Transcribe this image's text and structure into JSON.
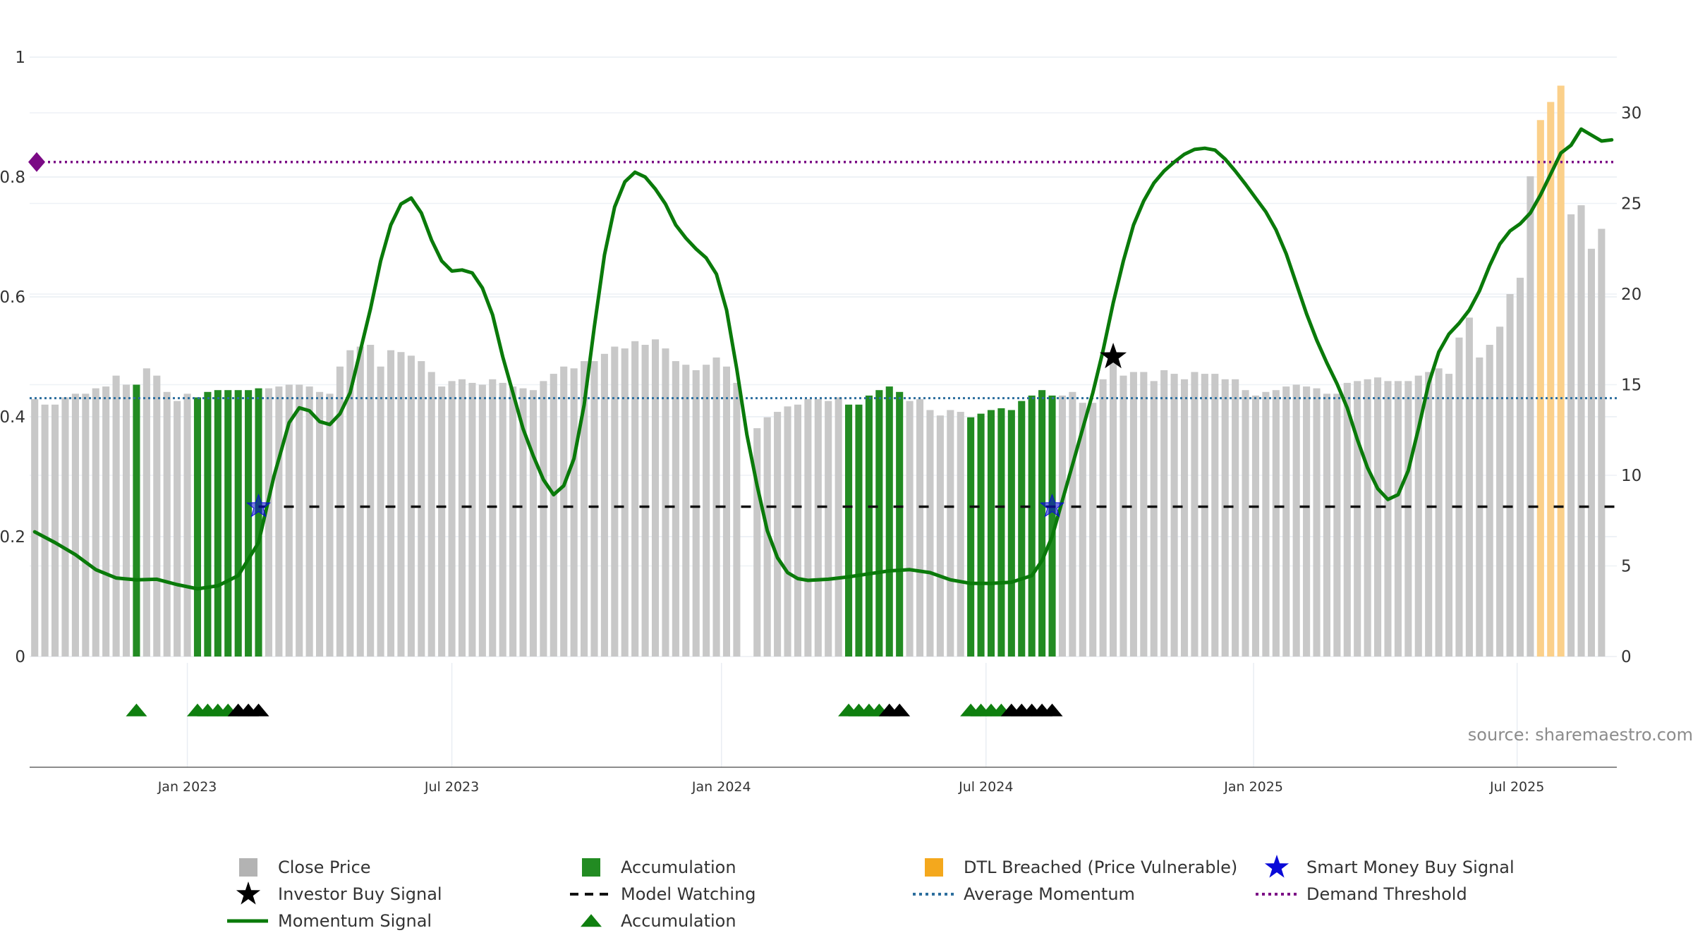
{
  "chart_data": {
    "type": "combo",
    "left_axis": {
      "ylim": [
        -0.18,
        1.0
      ],
      "ticks": [
        "0",
        "0.2",
        "0.4",
        "0.6",
        "0.8",
        "1"
      ],
      "tick_values": [
        0,
        0.2,
        0.4,
        0.6,
        0.8,
        1
      ]
    },
    "right_axis": {
      "ylim": [
        0,
        33.3
      ],
      "ticks": [
        "0",
        "5",
        "10",
        "15",
        "20",
        "25",
        "30"
      ],
      "tick_values": [
        0,
        5,
        10,
        15,
        20,
        25,
        30
      ]
    },
    "x_ticks": [
      {
        "label": "Jan 2023",
        "week": 15
      },
      {
        "label": "Jul 2023",
        "week": 41
      },
      {
        "label": "Jan 2024",
        "week": 67.5
      },
      {
        "label": "Jul 2024",
        "week": 93.5
      },
      {
        "label": "Jan 2025",
        "week": 119.8
      },
      {
        "label": "Jul 2025",
        "week": 145.7
      }
    ],
    "x_range": [
      -0.5,
      155.5
    ],
    "weeks": 156,
    "close_price": [
      14.2,
      13.9,
      13.9,
      14.3,
      14.5,
      14.5,
      14.8,
      14.9,
      15.5,
      15.0,
      15.0,
      15.9,
      15.5,
      14.6,
      14.1,
      14.5,
      14.3,
      14.6,
      14.7,
      14.7,
      14.7,
      14.7,
      14.8,
      14.8,
      14.9,
      15.0,
      15.0,
      14.9,
      14.6,
      14.5,
      16.0,
      16.9,
      17.1,
      17.2,
      16.0,
      16.9,
      16.8,
      16.6,
      16.3,
      15.7,
      14.9,
      15.2,
      15.3,
      15.1,
      15.0,
      15.3,
      15.1,
      14.9,
      14.8,
      14.7,
      15.2,
      15.6,
      16.0,
      15.9,
      16.3,
      16.3,
      16.7,
      17.1,
      17.0,
      17.4,
      17.2,
      17.5,
      17.0,
      16.3,
      16.1,
      15.8,
      16.1,
      16.5,
      16.0,
      15.1,
      0,
      12.6,
      13.2,
      13.5,
      13.8,
      13.9,
      14.2,
      14.2,
      14.1,
      14.3,
      13.9,
      13.9,
      14.4,
      14.7,
      14.9,
      14.6,
      14.1,
      14.2,
      13.6,
      13.3,
      13.6,
      13.5,
      13.2,
      13.4,
      13.6,
      13.7,
      13.6,
      14.1,
      14.4,
      14.7,
      14.4,
      14.4,
      14.6,
      14.0,
      14.0,
      15.3,
      16.4,
      15.5,
      15.7,
      15.7,
      15.2,
      15.8,
      15.6,
      15.3,
      15.7,
      15.6,
      15.6,
      15.3,
      15.3,
      14.7,
      14.4,
      14.6,
      14.7,
      14.9,
      15.0,
      14.9,
      14.8,
      14.5,
      14.5,
      15.1,
      15.2,
      15.3,
      15.4,
      15.2,
      15.2,
      15.2,
      15.5,
      15.7,
      15.9,
      15.6,
      17.6,
      18.7,
      16.5,
      17.2,
      18.2,
      20.0,
      20.9,
      26.5,
      29.6,
      30.6,
      31.5,
      24.4,
      24.9,
      22.5,
      23.6
    ],
    "accumulation_weeks": [
      10,
      16,
      17,
      18,
      19,
      20,
      21,
      22,
      80,
      81,
      82,
      83,
      84,
      85,
      92,
      93,
      94,
      95,
      96,
      97,
      98,
      99,
      100
    ],
    "dtl_breached_weeks": [
      148,
      149,
      150
    ],
    "momentum_signal": [
      [
        0,
        0.208
      ],
      [
        2,
        0.19
      ],
      [
        4,
        0.17
      ],
      [
        6,
        0.145
      ],
      [
        8,
        0.131
      ],
      [
        10,
        0.128
      ],
      [
        12,
        0.129
      ],
      [
        14,
        0.12
      ],
      [
        16,
        0.113
      ],
      [
        18,
        0.118
      ],
      [
        20,
        0.135
      ],
      [
        22,
        0.19
      ],
      [
        23.5,
        0.3
      ],
      [
        25,
        0.39
      ],
      [
        26,
        0.415
      ],
      [
        27,
        0.41
      ],
      [
        28,
        0.392
      ],
      [
        29,
        0.387
      ],
      [
        30,
        0.405
      ],
      [
        31,
        0.44
      ],
      [
        32,
        0.51
      ],
      [
        33,
        0.58
      ],
      [
        34,
        0.66
      ],
      [
        35,
        0.72
      ],
      [
        36,
        0.755
      ],
      [
        37,
        0.765
      ],
      [
        38,
        0.74
      ],
      [
        39,
        0.695
      ],
      [
        40,
        0.66
      ],
      [
        41,
        0.643
      ],
      [
        42,
        0.645
      ],
      [
        43,
        0.64
      ],
      [
        44,
        0.615
      ],
      [
        45,
        0.57
      ],
      [
        46,
        0.5
      ],
      [
        47,
        0.44
      ],
      [
        48,
        0.38
      ],
      [
        49,
        0.335
      ],
      [
        50,
        0.295
      ],
      [
        51,
        0.27
      ],
      [
        52,
        0.285
      ],
      [
        53,
        0.33
      ],
      [
        54,
        0.42
      ],
      [
        55,
        0.55
      ],
      [
        56,
        0.67
      ],
      [
        57,
        0.75
      ],
      [
        58,
        0.792
      ],
      [
        59,
        0.808
      ],
      [
        60,
        0.8
      ],
      [
        61,
        0.78
      ],
      [
        62,
        0.755
      ],
      [
        63,
        0.72
      ],
      [
        64,
        0.698
      ],
      [
        65,
        0.68
      ],
      [
        66,
        0.665
      ],
      [
        67,
        0.638
      ],
      [
        68,
        0.578
      ],
      [
        69,
        0.48
      ],
      [
        70,
        0.37
      ],
      [
        71,
        0.285
      ],
      [
        72,
        0.21
      ],
      [
        73,
        0.165
      ],
      [
        74,
        0.14
      ],
      [
        75,
        0.13
      ],
      [
        76,
        0.127
      ],
      [
        78,
        0.129
      ],
      [
        80,
        0.133
      ],
      [
        82,
        0.138
      ],
      [
        84,
        0.143
      ],
      [
        86,
        0.145
      ],
      [
        88,
        0.14
      ],
      [
        90,
        0.128
      ],
      [
        92,
        0.122
      ],
      [
        94,
        0.122
      ],
      [
        96,
        0.124
      ],
      [
        98,
        0.135
      ],
      [
        99,
        0.16
      ],
      [
        100,
        0.2
      ],
      [
        101,
        0.26
      ],
      [
        102,
        0.32
      ],
      [
        103,
        0.38
      ],
      [
        104,
        0.44
      ],
      [
        105,
        0.51
      ],
      [
        106,
        0.59
      ],
      [
        107,
        0.66
      ],
      [
        108,
        0.72
      ],
      [
        109,
        0.76
      ],
      [
        110,
        0.79
      ],
      [
        111,
        0.81
      ],
      [
        112,
        0.825
      ],
      [
        113,
        0.838
      ],
      [
        114,
        0.846
      ],
      [
        115,
        0.848
      ],
      [
        116,
        0.845
      ],
      [
        117,
        0.83
      ],
      [
        118,
        0.81
      ],
      [
        119,
        0.788
      ],
      [
        120,
        0.765
      ],
      [
        121,
        0.742
      ],
      [
        122,
        0.712
      ],
      [
        123,
        0.672
      ],
      [
        124,
        0.622
      ],
      [
        125,
        0.572
      ],
      [
        126,
        0.528
      ],
      [
        127,
        0.49
      ],
      [
        128,
        0.455
      ],
      [
        129,
        0.415
      ],
      [
        130,
        0.362
      ],
      [
        131,
        0.315
      ],
      [
        132,
        0.28
      ],
      [
        133,
        0.262
      ],
      [
        134,
        0.27
      ],
      [
        135,
        0.31
      ],
      [
        136,
        0.38
      ],
      [
        137,
        0.455
      ],
      [
        138,
        0.508
      ],
      [
        139,
        0.538
      ],
      [
        140,
        0.556
      ],
      [
        141,
        0.578
      ],
      [
        142,
        0.61
      ],
      [
        143,
        0.652
      ],
      [
        144,
        0.688
      ],
      [
        145,
        0.71
      ],
      [
        146,
        0.722
      ],
      [
        147,
        0.74
      ],
      [
        148,
        0.77
      ],
      [
        149,
        0.805
      ],
      [
        150,
        0.84
      ],
      [
        151,
        0.853
      ],
      [
        152,
        0.88
      ],
      [
        153,
        0.87
      ],
      [
        154,
        0.86
      ],
      [
        155,
        0.862
      ]
    ],
    "average_momentum": 0.431,
    "demand_threshold": 0.825,
    "model_watching": {
      "level": 0.25,
      "from_week": 22,
      "to_week": 155.5
    },
    "smart_money_buy_signals": [
      [
        22,
        0.25
      ],
      [
        100,
        0.25
      ]
    ],
    "investor_buy_signals": [
      [
        106,
        0.5
      ]
    ],
    "accumulation_markers": {
      "level": -0.09,
      "green": [
        10,
        16,
        17,
        18,
        19,
        80,
        81,
        82,
        83,
        92,
        93,
        94,
        95
      ],
      "black": [
        20,
        21,
        22,
        84,
        85,
        96,
        97,
        98,
        99,
        100
      ]
    },
    "source_text": "source: sharemaestro.com"
  },
  "colors": {
    "close_price": "#c8c8c8",
    "accumulation": "#228b22",
    "dtl": "#fbd08a",
    "momentum": "#0a7a0a",
    "average_momentum": "#2c6e9e",
    "demand_threshold": "#7b0a85",
    "smart_money": "#0a0ad8",
    "investor": "#000000",
    "model_watching": "#111111",
    "marker_green": "#0f7f0f",
    "marker_black": "#000000"
  },
  "legend": [
    {
      "label": "Close Price",
      "icon": "square-icon",
      "color": "#b3b3b3"
    },
    {
      "label": "Accumulation",
      "icon": "square-icon",
      "color": "#228b22"
    },
    {
      "label": "DTL Breached (Price Vulnerable)",
      "icon": "square-icon",
      "color": "#f4a81d"
    },
    {
      "label": "Smart Money Buy Signal",
      "icon": "star-icon",
      "color": "#0a0ad8"
    },
    {
      "label": "Investor Buy Signal",
      "icon": "star-icon",
      "color": "#000000"
    },
    {
      "label": "Model Watching",
      "icon": "dash-line-icon",
      "color": "#111111"
    },
    {
      "label": "Average Momentum",
      "icon": "dot-line-icon",
      "color": "#2c6e9e"
    },
    {
      "label": "Demand Threshold",
      "icon": "dot-line-icon",
      "color": "#7b0a85"
    },
    {
      "label": "Momentum Signal",
      "icon": "solid-line-icon",
      "color": "#0a7a0a"
    },
    {
      "label": "Accumulation",
      "icon": "triangle-icon",
      "color": "#0f7f0f"
    }
  ]
}
